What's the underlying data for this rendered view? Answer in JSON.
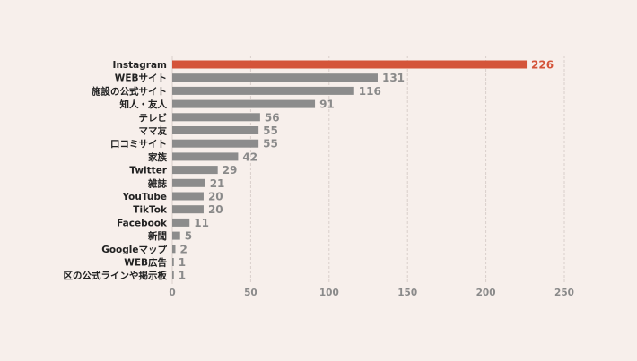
{
  "chart_data": {
    "type": "bar",
    "orientation": "horizontal",
    "title": "",
    "xlabel": "",
    "ylabel": "",
    "xlim": [
      0,
      250
    ],
    "xticks": [
      0,
      50,
      100,
      150,
      200,
      250
    ],
    "grid": "vertical dashed",
    "categories": [
      "Instagram",
      "WEBサイト",
      "施設の公式サイト",
      "知人・友人",
      "テレビ",
      "ママ友",
      "口コミサイト",
      "家族",
      "Twitter",
      "雑誌",
      "YouTube",
      "TikTok",
      "Facebook",
      "新聞",
      "Googleマップ",
      "WEB広告",
      "区の公式ラインや掲示板"
    ],
    "values": [
      226,
      131,
      116,
      91,
      56,
      55,
      55,
      42,
      29,
      21,
      20,
      20,
      11,
      5,
      2,
      1,
      1
    ],
    "highlight_index": 0,
    "colors": {
      "highlight": "#d4543a",
      "bar": "#8c8c8c",
      "background": "#f7efeb",
      "grid": "#d9cfcb"
    }
  }
}
